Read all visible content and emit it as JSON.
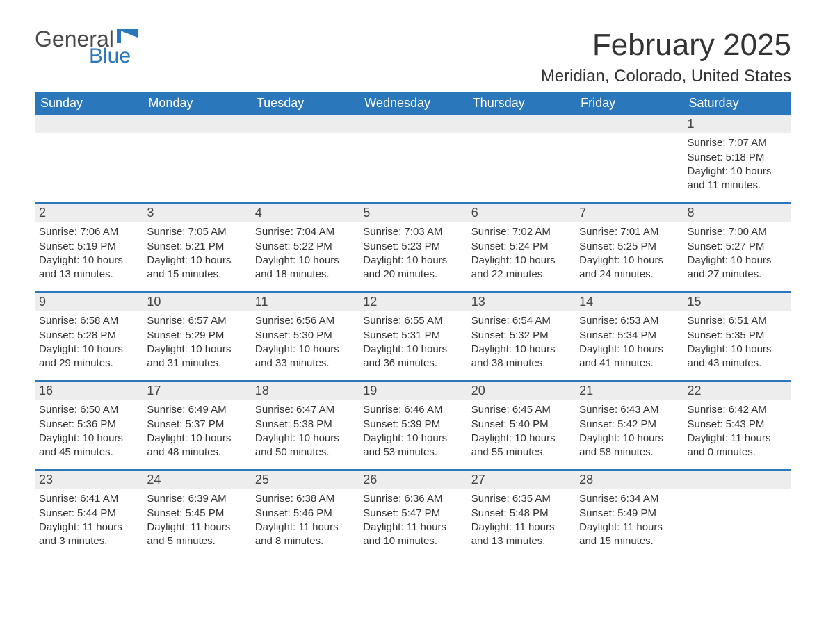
{
  "logo": {
    "text1": "General",
    "text2": "Blue",
    "flag_color": "#2a77bb"
  },
  "title": "February 2025",
  "location": "Meridian, Colorado, United States",
  "colors": {
    "header_bg": "#2a77bb",
    "header_text": "#ffffff",
    "daynum_bg": "#ededed",
    "row_border": "#2a77bb",
    "body_text": "#333333"
  },
  "weekdays": [
    "Sunday",
    "Monday",
    "Tuesday",
    "Wednesday",
    "Thursday",
    "Friday",
    "Saturday"
  ],
  "weeks": [
    [
      {
        "n": "",
        "sunrise": "",
        "sunset": "",
        "daylight": ""
      },
      {
        "n": "",
        "sunrise": "",
        "sunset": "",
        "daylight": ""
      },
      {
        "n": "",
        "sunrise": "",
        "sunset": "",
        "daylight": ""
      },
      {
        "n": "",
        "sunrise": "",
        "sunset": "",
        "daylight": ""
      },
      {
        "n": "",
        "sunrise": "",
        "sunset": "",
        "daylight": ""
      },
      {
        "n": "",
        "sunrise": "",
        "sunset": "",
        "daylight": ""
      },
      {
        "n": "1",
        "sunrise": "Sunrise: 7:07 AM",
        "sunset": "Sunset: 5:18 PM",
        "daylight": "Daylight: 10 hours and 11 minutes."
      }
    ],
    [
      {
        "n": "2",
        "sunrise": "Sunrise: 7:06 AM",
        "sunset": "Sunset: 5:19 PM",
        "daylight": "Daylight: 10 hours and 13 minutes."
      },
      {
        "n": "3",
        "sunrise": "Sunrise: 7:05 AM",
        "sunset": "Sunset: 5:21 PM",
        "daylight": "Daylight: 10 hours and 15 minutes."
      },
      {
        "n": "4",
        "sunrise": "Sunrise: 7:04 AM",
        "sunset": "Sunset: 5:22 PM",
        "daylight": "Daylight: 10 hours and 18 minutes."
      },
      {
        "n": "5",
        "sunrise": "Sunrise: 7:03 AM",
        "sunset": "Sunset: 5:23 PM",
        "daylight": "Daylight: 10 hours and 20 minutes."
      },
      {
        "n": "6",
        "sunrise": "Sunrise: 7:02 AM",
        "sunset": "Sunset: 5:24 PM",
        "daylight": "Daylight: 10 hours and 22 minutes."
      },
      {
        "n": "7",
        "sunrise": "Sunrise: 7:01 AM",
        "sunset": "Sunset: 5:25 PM",
        "daylight": "Daylight: 10 hours and 24 minutes."
      },
      {
        "n": "8",
        "sunrise": "Sunrise: 7:00 AM",
        "sunset": "Sunset: 5:27 PM",
        "daylight": "Daylight: 10 hours and 27 minutes."
      }
    ],
    [
      {
        "n": "9",
        "sunrise": "Sunrise: 6:58 AM",
        "sunset": "Sunset: 5:28 PM",
        "daylight": "Daylight: 10 hours and 29 minutes."
      },
      {
        "n": "10",
        "sunrise": "Sunrise: 6:57 AM",
        "sunset": "Sunset: 5:29 PM",
        "daylight": "Daylight: 10 hours and 31 minutes."
      },
      {
        "n": "11",
        "sunrise": "Sunrise: 6:56 AM",
        "sunset": "Sunset: 5:30 PM",
        "daylight": "Daylight: 10 hours and 33 minutes."
      },
      {
        "n": "12",
        "sunrise": "Sunrise: 6:55 AM",
        "sunset": "Sunset: 5:31 PM",
        "daylight": "Daylight: 10 hours and 36 minutes."
      },
      {
        "n": "13",
        "sunrise": "Sunrise: 6:54 AM",
        "sunset": "Sunset: 5:32 PM",
        "daylight": "Daylight: 10 hours and 38 minutes."
      },
      {
        "n": "14",
        "sunrise": "Sunrise: 6:53 AM",
        "sunset": "Sunset: 5:34 PM",
        "daylight": "Daylight: 10 hours and 41 minutes."
      },
      {
        "n": "15",
        "sunrise": "Sunrise: 6:51 AM",
        "sunset": "Sunset: 5:35 PM",
        "daylight": "Daylight: 10 hours and 43 minutes."
      }
    ],
    [
      {
        "n": "16",
        "sunrise": "Sunrise: 6:50 AM",
        "sunset": "Sunset: 5:36 PM",
        "daylight": "Daylight: 10 hours and 45 minutes."
      },
      {
        "n": "17",
        "sunrise": "Sunrise: 6:49 AM",
        "sunset": "Sunset: 5:37 PM",
        "daylight": "Daylight: 10 hours and 48 minutes."
      },
      {
        "n": "18",
        "sunrise": "Sunrise: 6:47 AM",
        "sunset": "Sunset: 5:38 PM",
        "daylight": "Daylight: 10 hours and 50 minutes."
      },
      {
        "n": "19",
        "sunrise": "Sunrise: 6:46 AM",
        "sunset": "Sunset: 5:39 PM",
        "daylight": "Daylight: 10 hours and 53 minutes."
      },
      {
        "n": "20",
        "sunrise": "Sunrise: 6:45 AM",
        "sunset": "Sunset: 5:40 PM",
        "daylight": "Daylight: 10 hours and 55 minutes."
      },
      {
        "n": "21",
        "sunrise": "Sunrise: 6:43 AM",
        "sunset": "Sunset: 5:42 PM",
        "daylight": "Daylight: 10 hours and 58 minutes."
      },
      {
        "n": "22",
        "sunrise": "Sunrise: 6:42 AM",
        "sunset": "Sunset: 5:43 PM",
        "daylight": "Daylight: 11 hours and 0 minutes."
      }
    ],
    [
      {
        "n": "23",
        "sunrise": "Sunrise: 6:41 AM",
        "sunset": "Sunset: 5:44 PM",
        "daylight": "Daylight: 11 hours and 3 minutes."
      },
      {
        "n": "24",
        "sunrise": "Sunrise: 6:39 AM",
        "sunset": "Sunset: 5:45 PM",
        "daylight": "Daylight: 11 hours and 5 minutes."
      },
      {
        "n": "25",
        "sunrise": "Sunrise: 6:38 AM",
        "sunset": "Sunset: 5:46 PM",
        "daylight": "Daylight: 11 hours and 8 minutes."
      },
      {
        "n": "26",
        "sunrise": "Sunrise: 6:36 AM",
        "sunset": "Sunset: 5:47 PM",
        "daylight": "Daylight: 11 hours and 10 minutes."
      },
      {
        "n": "27",
        "sunrise": "Sunrise: 6:35 AM",
        "sunset": "Sunset: 5:48 PM",
        "daylight": "Daylight: 11 hours and 13 minutes."
      },
      {
        "n": "28",
        "sunrise": "Sunrise: 6:34 AM",
        "sunset": "Sunset: 5:49 PM",
        "daylight": "Daylight: 11 hours and 15 minutes."
      },
      {
        "n": "",
        "sunrise": "",
        "sunset": "",
        "daylight": ""
      }
    ]
  ]
}
